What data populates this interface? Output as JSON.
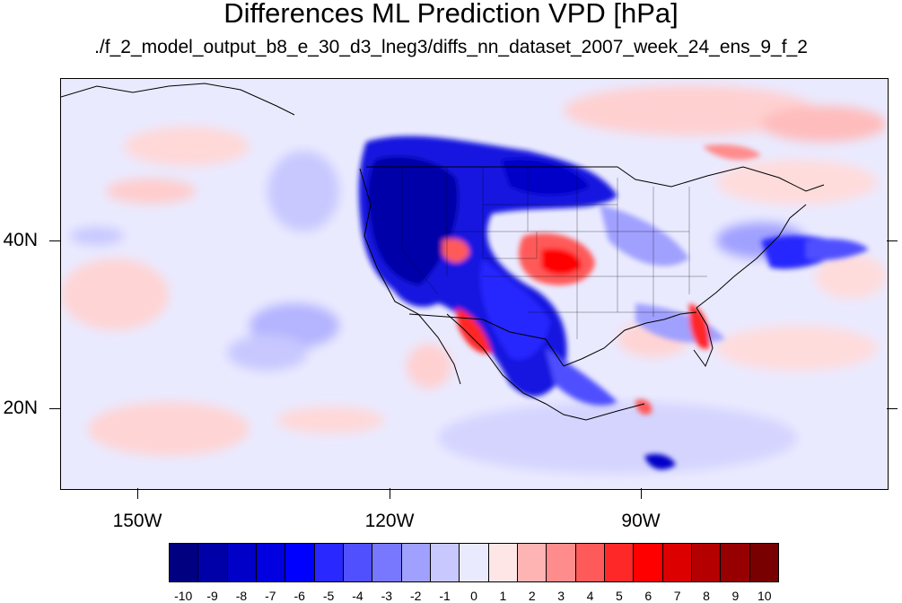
{
  "title": "Differences ML Prediction VPD [hPa]",
  "subtitle": "./f_2_model_output_b8_e_30_d3_lneg3/diffs_nn_dataset_2007_week_24_ens_9_f_2",
  "map": {
    "lon_labels": [
      "150W",
      "120W",
      "90W"
    ],
    "lat_labels": [
      "40N",
      "20N"
    ]
  },
  "colorbar": {
    "labels": [
      "-10",
      "-9",
      "-8",
      "-7",
      "-6",
      "-5",
      "-4",
      "-3",
      "-2",
      "-1",
      "0",
      "1",
      "2",
      "3",
      "4",
      "5",
      "6",
      "7",
      "8",
      "9",
      "10"
    ],
    "colors": [
      "#000080",
      "#0000a8",
      "#0000c8",
      "#0000e0",
      "#0000ff",
      "#2828ff",
      "#5050ff",
      "#7878ff",
      "#a0a0ff",
      "#c8c8ff",
      "#eaeaff",
      "#ffe6e6",
      "#ffb4b4",
      "#ff8c8c",
      "#ff5a5a",
      "#ff2828",
      "#ff0000",
      "#dc0000",
      "#b40000",
      "#960000",
      "#780000"
    ]
  }
}
